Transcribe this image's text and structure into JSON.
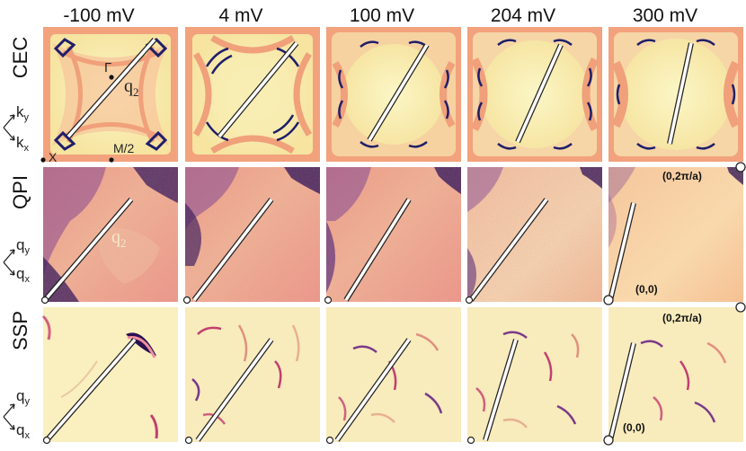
{
  "figure": {
    "columns": [
      "-100 mV",
      "4 mV",
      "100 mV",
      "204 mV",
      "300 mV"
    ],
    "rows": [
      "CEC",
      "QPI",
      "SSP"
    ],
    "axes": {
      "cec": {
        "y": "k",
        "y_sub": "y",
        "x": "k",
        "x_sub": "x"
      },
      "qpi": {
        "y": "q",
        "y_sub": "y",
        "x": "q",
        "x_sub": "x"
      },
      "ssp": {
        "y": "q",
        "y_sub": "y",
        "x": "q",
        "x_sub": "x"
      }
    },
    "points": {
      "gamma": "Γ",
      "x": "X",
      "m2": "M/2"
    },
    "vector": {
      "base": "q",
      "sub": "2"
    },
    "corner_labels": {
      "top": "(0,2π/a)",
      "origin": "(0,0)"
    },
    "colors": {
      "cec_bg": "#f8f0b0",
      "cec_band": "#f0a07a",
      "cec_contour": "#1e1e6a",
      "qpi_light": "#fbd6a4",
      "qpi_mid": "#f07a6a",
      "qpi_dark": "#3a1a6a",
      "ssp_bg": "#faefbf"
    }
  }
}
